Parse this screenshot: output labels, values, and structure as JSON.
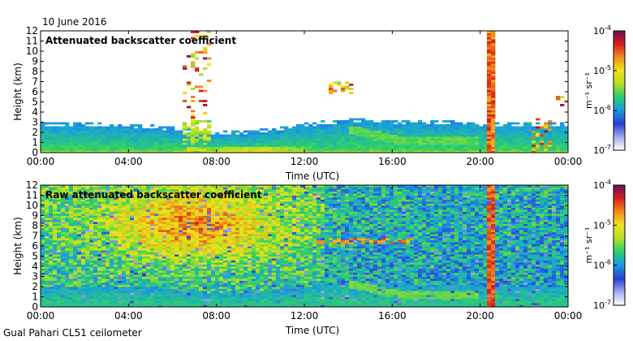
{
  "date": "10 June 2016",
  "footer": "Gual Pahari CL51 ceilometer",
  "chart_data": [
    {
      "type": "heatmap",
      "title": "Attenuated backscatter coefficient",
      "xlabel": "Time (UTC)",
      "ylabel": "Height (km)",
      "xlim": [
        0,
        24
      ],
      "ylim": [
        0,
        12
      ],
      "x_ticks": [
        "00:00",
        "04:00",
        "08:00",
        "12:00",
        "16:00",
        "20:00",
        "00:00"
      ],
      "y_ticks": [
        "0",
        "1",
        "2",
        "3",
        "4",
        "5",
        "6",
        "7",
        "8",
        "9",
        "10",
        "11",
        "12"
      ],
      "colorbar": {
        "scale": "log",
        "range": [
          1e-07,
          0.0001
        ],
        "ticks": [
          {
            "base": "10",
            "exp": "-4"
          },
          {
            "base": "10",
            "exp": "-5"
          },
          {
            "base": "10",
            "exp": "-6"
          },
          {
            "base": "10",
            "exp": "-7"
          }
        ],
        "label": "m⁻¹ sr⁻¹"
      }
    },
    {
      "type": "heatmap",
      "title": "Raw attenuated backscatter coefficient",
      "xlabel": "Time (UTC)",
      "ylabel": "Height (km)",
      "xlim": [
        0,
        24
      ],
      "ylim": [
        0,
        12
      ],
      "x_ticks": [
        "00:00",
        "04:00",
        "08:00",
        "12:00",
        "16:00",
        "20:00",
        "00:00"
      ],
      "y_ticks": [
        "0",
        "1",
        "2",
        "3",
        "4",
        "5",
        "6",
        "7",
        "8",
        "9",
        "10",
        "11",
        "12"
      ],
      "colorbar": {
        "scale": "log",
        "range": [
          1e-07,
          0.0001
        ],
        "ticks": [
          {
            "base": "10",
            "exp": "-4"
          },
          {
            "base": "10",
            "exp": "-5"
          },
          {
            "base": "10",
            "exp": "-6"
          },
          {
            "base": "10",
            "exp": "-7"
          }
        ],
        "label": "m⁻¹ sr⁻¹"
      }
    }
  ]
}
